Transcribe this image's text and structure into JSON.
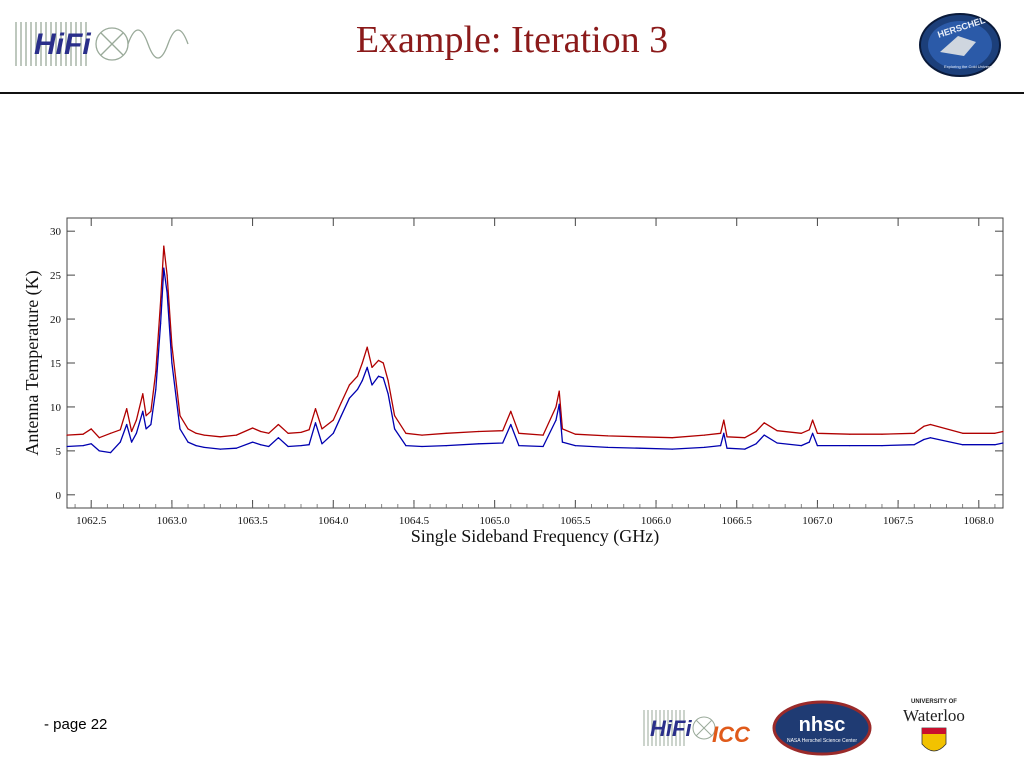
{
  "header": {
    "title": "Example: Iteration 3",
    "logo_text": "HiFi",
    "badge_text": "HERSCHEL",
    "badge_subtext": "Exploring the Cold Universe"
  },
  "footer": {
    "page_label": "- page 22",
    "hifi_icc_text": "HiFi",
    "icc_text": "ICC",
    "nhsc_text": "nhsc",
    "nhsc_subtext": "NASA Herschel Science Center",
    "waterloo_small": "UNIVERSITY OF",
    "waterloo_text": "Waterloo"
  },
  "colors": {
    "title": "#8b1a1a",
    "series_red": "#b00000",
    "series_blue": "#0000b0"
  },
  "chart_data": {
    "type": "line",
    "title": "",
    "xlabel": "Single Sideband Frequency (GHz)",
    "ylabel": "Antenna Temperature (K)",
    "xlim": [
      1062.35,
      1068.15
    ],
    "ylim": [
      -1.5,
      31.5
    ],
    "xticks": [
      1062.5,
      1063.0,
      1063.5,
      1064.0,
      1064.5,
      1065.0,
      1065.5,
      1066.0,
      1066.5,
      1067.0,
      1067.5,
      1068.0
    ],
    "xtick_labels": [
      "1062.5",
      "1063.0",
      "1063.5",
      "1064.0",
      "1064.5",
      "1065.0",
      "1065.5",
      "1066.0",
      "1066.5",
      "1067.0",
      "1067.5",
      "1068.0"
    ],
    "yticks": [
      0,
      5,
      10,
      15,
      20,
      25,
      30
    ],
    "ytick_labels": [
      "0",
      "5",
      "10",
      "15",
      "20",
      "25",
      "30"
    ],
    "grid": false,
    "series": [
      {
        "color": "#b00000",
        "x": [
          1062.35,
          1062.45,
          1062.5,
          1062.55,
          1062.62,
          1062.68,
          1062.72,
          1062.75,
          1062.78,
          1062.82,
          1062.84,
          1062.87,
          1062.9,
          1062.93,
          1062.95,
          1062.97,
          1063.0,
          1063.05,
          1063.1,
          1063.15,
          1063.2,
          1063.3,
          1063.4,
          1063.5,
          1063.55,
          1063.6,
          1063.66,
          1063.72,
          1063.8,
          1063.85,
          1063.89,
          1063.93,
          1064.0,
          1064.05,
          1064.1,
          1064.15,
          1064.18,
          1064.21,
          1064.24,
          1064.28,
          1064.31,
          1064.34,
          1064.38,
          1064.45,
          1064.55,
          1064.7,
          1064.9,
          1065.05,
          1065.1,
          1065.15,
          1065.3,
          1065.38,
          1065.4,
          1065.42,
          1065.5,
          1065.7,
          1065.9,
          1066.1,
          1066.3,
          1066.4,
          1066.42,
          1066.44,
          1066.55,
          1066.62,
          1066.67,
          1066.75,
          1066.9,
          1066.95,
          1066.97,
          1067.0,
          1067.2,
          1067.4,
          1067.6,
          1067.66,
          1067.7,
          1067.9,
          1068.1,
          1068.15
        ],
        "y": [
          6.8,
          6.9,
          7.5,
          6.5,
          7.0,
          7.4,
          9.8,
          7.2,
          8.5,
          11.5,
          9.0,
          9.5,
          14.0,
          22.0,
          28.3,
          25.0,
          17.0,
          9.0,
          7.5,
          7.0,
          6.8,
          6.6,
          6.8,
          7.6,
          7.2,
          7.0,
          8.0,
          7.0,
          7.1,
          7.4,
          9.8,
          7.5,
          8.5,
          10.5,
          12.5,
          13.5,
          15.0,
          16.8,
          14.5,
          15.3,
          15.0,
          13.0,
          9.0,
          7.0,
          6.8,
          7.0,
          7.2,
          7.3,
          9.5,
          7.0,
          6.8,
          10.0,
          11.8,
          7.5,
          6.9,
          6.7,
          6.6,
          6.5,
          6.8,
          7.0,
          8.5,
          6.6,
          6.5,
          7.2,
          8.2,
          7.3,
          7.0,
          7.4,
          8.5,
          7.0,
          6.9,
          6.9,
          7.0,
          7.8,
          8.0,
          7.0,
          7.0,
          7.2
        ]
      },
      {
        "color": "#0000b0",
        "x": [
          1062.35,
          1062.45,
          1062.5,
          1062.55,
          1062.62,
          1062.68,
          1062.72,
          1062.75,
          1062.78,
          1062.82,
          1062.84,
          1062.87,
          1062.9,
          1062.93,
          1062.95,
          1062.97,
          1063.0,
          1063.05,
          1063.1,
          1063.15,
          1063.2,
          1063.3,
          1063.4,
          1063.5,
          1063.55,
          1063.6,
          1063.66,
          1063.72,
          1063.8,
          1063.85,
          1063.89,
          1063.93,
          1064.0,
          1064.05,
          1064.1,
          1064.15,
          1064.18,
          1064.21,
          1064.24,
          1064.28,
          1064.31,
          1064.34,
          1064.38,
          1064.45,
          1064.55,
          1064.7,
          1064.9,
          1065.05,
          1065.1,
          1065.15,
          1065.3,
          1065.38,
          1065.4,
          1065.42,
          1065.5,
          1065.7,
          1065.9,
          1066.1,
          1066.3,
          1066.4,
          1066.42,
          1066.44,
          1066.55,
          1066.62,
          1066.67,
          1066.75,
          1066.9,
          1066.95,
          1066.97,
          1067.0,
          1067.2,
          1067.4,
          1067.6,
          1067.66,
          1067.7,
          1067.9,
          1068.1,
          1068.15
        ],
        "y": [
          5.5,
          5.6,
          5.8,
          5.0,
          4.8,
          6.0,
          8.0,
          6.0,
          7.0,
          9.5,
          7.5,
          8.0,
          12.0,
          19.5,
          25.8,
          23.0,
          15.0,
          7.5,
          6.0,
          5.6,
          5.4,
          5.2,
          5.3,
          6.0,
          5.7,
          5.5,
          6.5,
          5.5,
          5.6,
          5.7,
          8.2,
          5.8,
          7.0,
          9.0,
          11.0,
          12.0,
          13.0,
          14.5,
          12.5,
          13.5,
          13.3,
          11.5,
          7.5,
          5.6,
          5.5,
          5.6,
          5.8,
          5.9,
          8.0,
          5.6,
          5.5,
          8.5,
          10.3,
          6.0,
          5.6,
          5.4,
          5.3,
          5.2,
          5.4,
          5.6,
          7.0,
          5.3,
          5.2,
          5.8,
          6.8,
          5.9,
          5.6,
          6.0,
          7.0,
          5.6,
          5.6,
          5.6,
          5.7,
          6.3,
          6.5,
          5.7,
          5.7,
          5.9
        ]
      }
    ]
  }
}
